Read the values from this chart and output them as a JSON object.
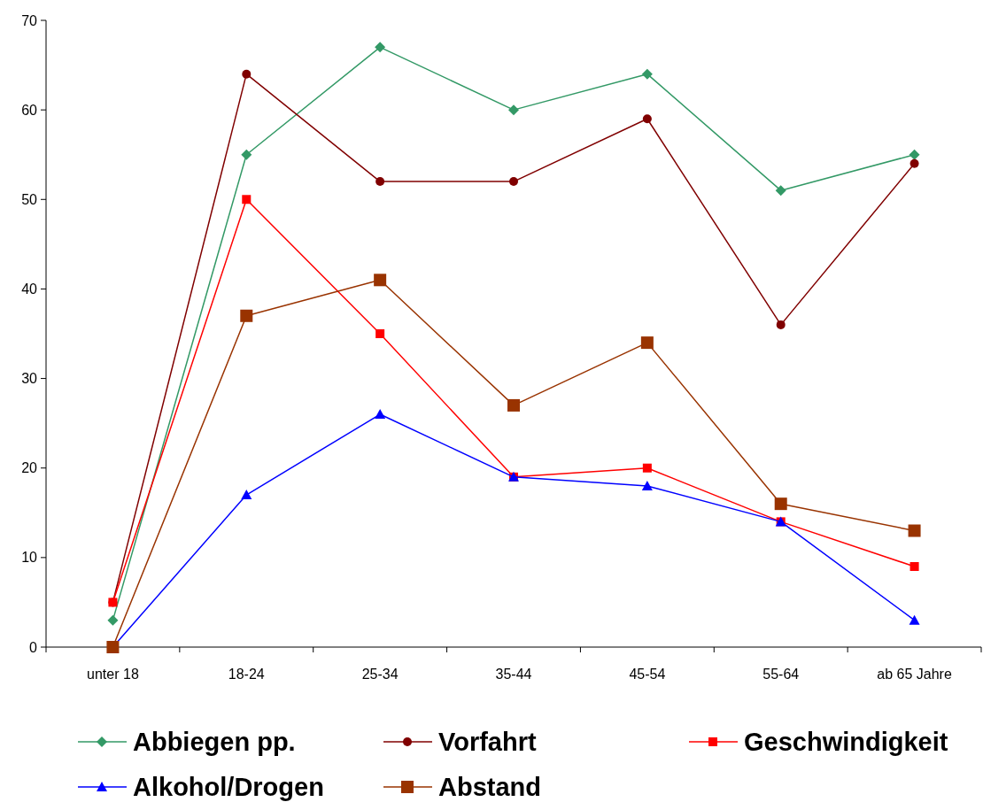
{
  "chart_data": {
    "type": "line",
    "categories": [
      "unter 18",
      "18-24",
      "25-34",
      "35-44",
      "45-54",
      "55-64",
      "ab 65 Jahre"
    ],
    "ylim": [
      0,
      70
    ],
    "yticks": [
      0,
      10,
      20,
      30,
      40,
      50,
      60,
      70
    ],
    "grid": false,
    "legend": "bottom",
    "series": [
      {
        "name": "Abbiegen pp.",
        "color": "#339966",
        "marker": "diamond",
        "values": [
          3,
          55,
          67,
          60,
          64,
          51,
          55
        ]
      },
      {
        "name": "Vorfahrt",
        "color": "#800000",
        "marker": "circle",
        "values": [
          5,
          64,
          52,
          52,
          59,
          36,
          54
        ]
      },
      {
        "name": "Geschwindigkeit",
        "color": "#ff0000",
        "marker": "square",
        "values": [
          5,
          50,
          35,
          19,
          20,
          14,
          9
        ]
      },
      {
        "name": "Alkohol/Drogen",
        "color": "#0000ff",
        "marker": "triangle",
        "values": [
          0,
          17,
          26,
          19,
          18,
          14,
          3
        ]
      },
      {
        "name": "Abstand",
        "color": "#993300",
        "marker": "square",
        "values": [
          0,
          37,
          41,
          27,
          34,
          16,
          13
        ]
      }
    ]
  }
}
